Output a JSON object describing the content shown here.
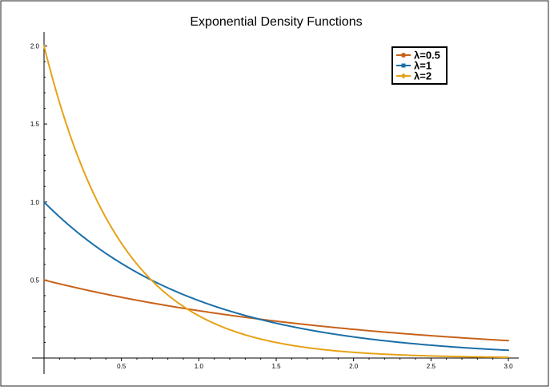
{
  "chart_data": {
    "type": "line",
    "title": "Exponential Density Functions",
    "xlabel": "",
    "ylabel": "",
    "xlim": [
      0,
      3
    ],
    "ylim": [
      0,
      2.1
    ],
    "x_ticks": [
      0.5,
      1.0,
      1.5,
      2.0,
      2.5,
      3.0
    ],
    "x_tick_labels": [
      "0.5",
      "1.0",
      "1.5",
      "2.0",
      "2.5",
      "3.0"
    ],
    "y_ticks": [
      0.5,
      1.0,
      1.5,
      2.0
    ],
    "y_tick_labels": [
      "0.5",
      "1.0",
      "1.5",
      "2.0"
    ],
    "grid": false,
    "legend_position": "top-right",
    "series": [
      {
        "name": "λ=0.5",
        "color": "#c8621a",
        "marker": "circle",
        "x": [
          0,
          0.25,
          0.5,
          0.75,
          1.0,
          1.25,
          1.5,
          1.75,
          2.0,
          2.25,
          2.5,
          2.75,
          3.0
        ],
        "y": [
          0.5,
          0.441,
          0.389,
          0.344,
          0.303,
          0.268,
          0.236,
          0.208,
          0.184,
          0.162,
          0.143,
          0.126,
          0.112
        ]
      },
      {
        "name": "λ=1",
        "color": "#1a6fa8",
        "marker": "square",
        "x": [
          0,
          0.25,
          0.5,
          0.75,
          1.0,
          1.25,
          1.5,
          1.75,
          2.0,
          2.25,
          2.5,
          2.75,
          3.0
        ],
        "y": [
          1.0,
          0.779,
          0.607,
          0.472,
          0.368,
          0.287,
          0.223,
          0.174,
          0.135,
          0.105,
          0.082,
          0.064,
          0.05
        ]
      },
      {
        "name": "λ=2",
        "color": "#e6a217",
        "marker": "diamond",
        "x": [
          0,
          0.1,
          0.2,
          0.3,
          0.4,
          0.5,
          0.6,
          0.7,
          0.8,
          0.9,
          1.0,
          1.25,
          1.5,
          1.75,
          2.0,
          2.25,
          2.5,
          2.75,
          3.0
        ],
        "y": [
          2.0,
          1.637,
          1.341,
          1.098,
          0.899,
          0.736,
          0.602,
          0.493,
          0.404,
          0.331,
          0.271,
          0.164,
          0.1,
          0.06,
          0.037,
          0.022,
          0.013,
          0.008,
          0.005
        ]
      }
    ]
  }
}
